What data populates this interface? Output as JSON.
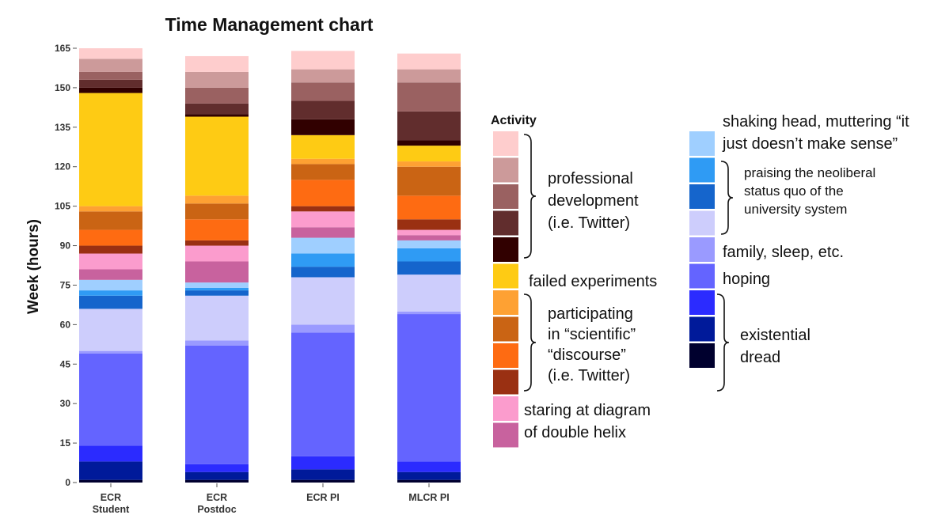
{
  "chart_data": {
    "type": "bar",
    "stacked": true,
    "title": "Time Management chart",
    "ylabel": "Week (hours)",
    "xlabel": "",
    "ylim": [
      0,
      165
    ],
    "yticks": [
      0,
      15,
      30,
      45,
      60,
      75,
      90,
      105,
      120,
      135,
      150,
      165
    ],
    "categories": [
      "ECR\nStudent",
      "ECR\nPostdoc",
      "ECR PI",
      "MLCR PI"
    ],
    "grid": false,
    "legend_title": "Activity",
    "legend_placement": "right",
    "series": [
      {
        "color": "#00002e",
        "values": [
          1,
          1,
          1,
          1
        ]
      },
      {
        "color": "#001a9a",
        "values": [
          7,
          3,
          4,
          3
        ]
      },
      {
        "color": "#2b2bff",
        "values": [
          6,
          3,
          5,
          4
        ]
      },
      {
        "color": "#6464ff",
        "values": [
          35,
          45,
          47,
          56
        ]
      },
      {
        "color": "#9a9aff",
        "values": [
          1,
          2,
          3,
          1
        ]
      },
      {
        "color": "#cdcdfc",
        "values": [
          16,
          17,
          18,
          14
        ]
      },
      {
        "color": "#1565cc",
        "values": [
          5,
          2,
          4,
          5
        ]
      },
      {
        "color": "#2f9bf4",
        "values": [
          2,
          1,
          5,
          5
        ]
      },
      {
        "color": "#9fcfff",
        "values": [
          4,
          2,
          6,
          3
        ]
      },
      {
        "color": "#c8629e",
        "values": [
          4,
          8,
          4,
          2
        ]
      },
      {
        "color": "#fb9ccd",
        "values": [
          6,
          6,
          6,
          2
        ]
      },
      {
        "color": "#9a3012",
        "values": [
          3,
          2,
          2,
          4
        ]
      },
      {
        "color": "#fe6b12",
        "values": [
          6,
          8,
          10,
          9
        ]
      },
      {
        "color": "#ca6414",
        "values": [
          7,
          6,
          6,
          11
        ]
      },
      {
        "color": "#fea133",
        "values": [
          2,
          3,
          2,
          2
        ]
      },
      {
        "color": "#fecb14",
        "values": [
          43,
          30,
          9,
          6
        ]
      },
      {
        "color": "#310000",
        "values": [
          2,
          1,
          6,
          2
        ]
      },
      {
        "color": "#612d2d",
        "values": [
          3,
          4,
          7,
          11
        ]
      },
      {
        "color": "#9a6161",
        "values": [
          3,
          6,
          7,
          11
        ]
      },
      {
        "color": "#cc9a9a",
        "values": [
          5,
          6,
          5,
          5
        ]
      },
      {
        "color": "#fecdcd",
        "values": [
          4,
          6,
          7,
          6
        ]
      }
    ]
  },
  "legend": {
    "groups": [
      {
        "label_lines": [
          "professional",
          "development",
          "(i.e. Twitter)"
        ],
        "style": "large"
      },
      {
        "label_lines": [
          "failed experiments"
        ],
        "style": "large"
      },
      {
        "label_lines": [
          "participating",
          "in “scientific”",
          "“discourse”",
          "(i.e. Twitter)"
        ],
        "style": "large"
      },
      {
        "label_lines": [
          "staring at diagram",
          "of double helix"
        ],
        "style": "large"
      },
      {
        "label_lines": [
          "shaking head, muttering “it",
          "just doesn’t make sense”"
        ],
        "style": "large"
      },
      {
        "label_lines": [
          "praising the neoliberal",
          "status quo of the",
          "university system"
        ],
        "style": "small"
      },
      {
        "label_lines": [
          "family, sleep, etc."
        ],
        "style": "large"
      },
      {
        "label_lines": [
          "hoping"
        ],
        "style": "large"
      },
      {
        "label_lines": [
          "existential",
          "dread"
        ],
        "style": "large"
      }
    ]
  }
}
